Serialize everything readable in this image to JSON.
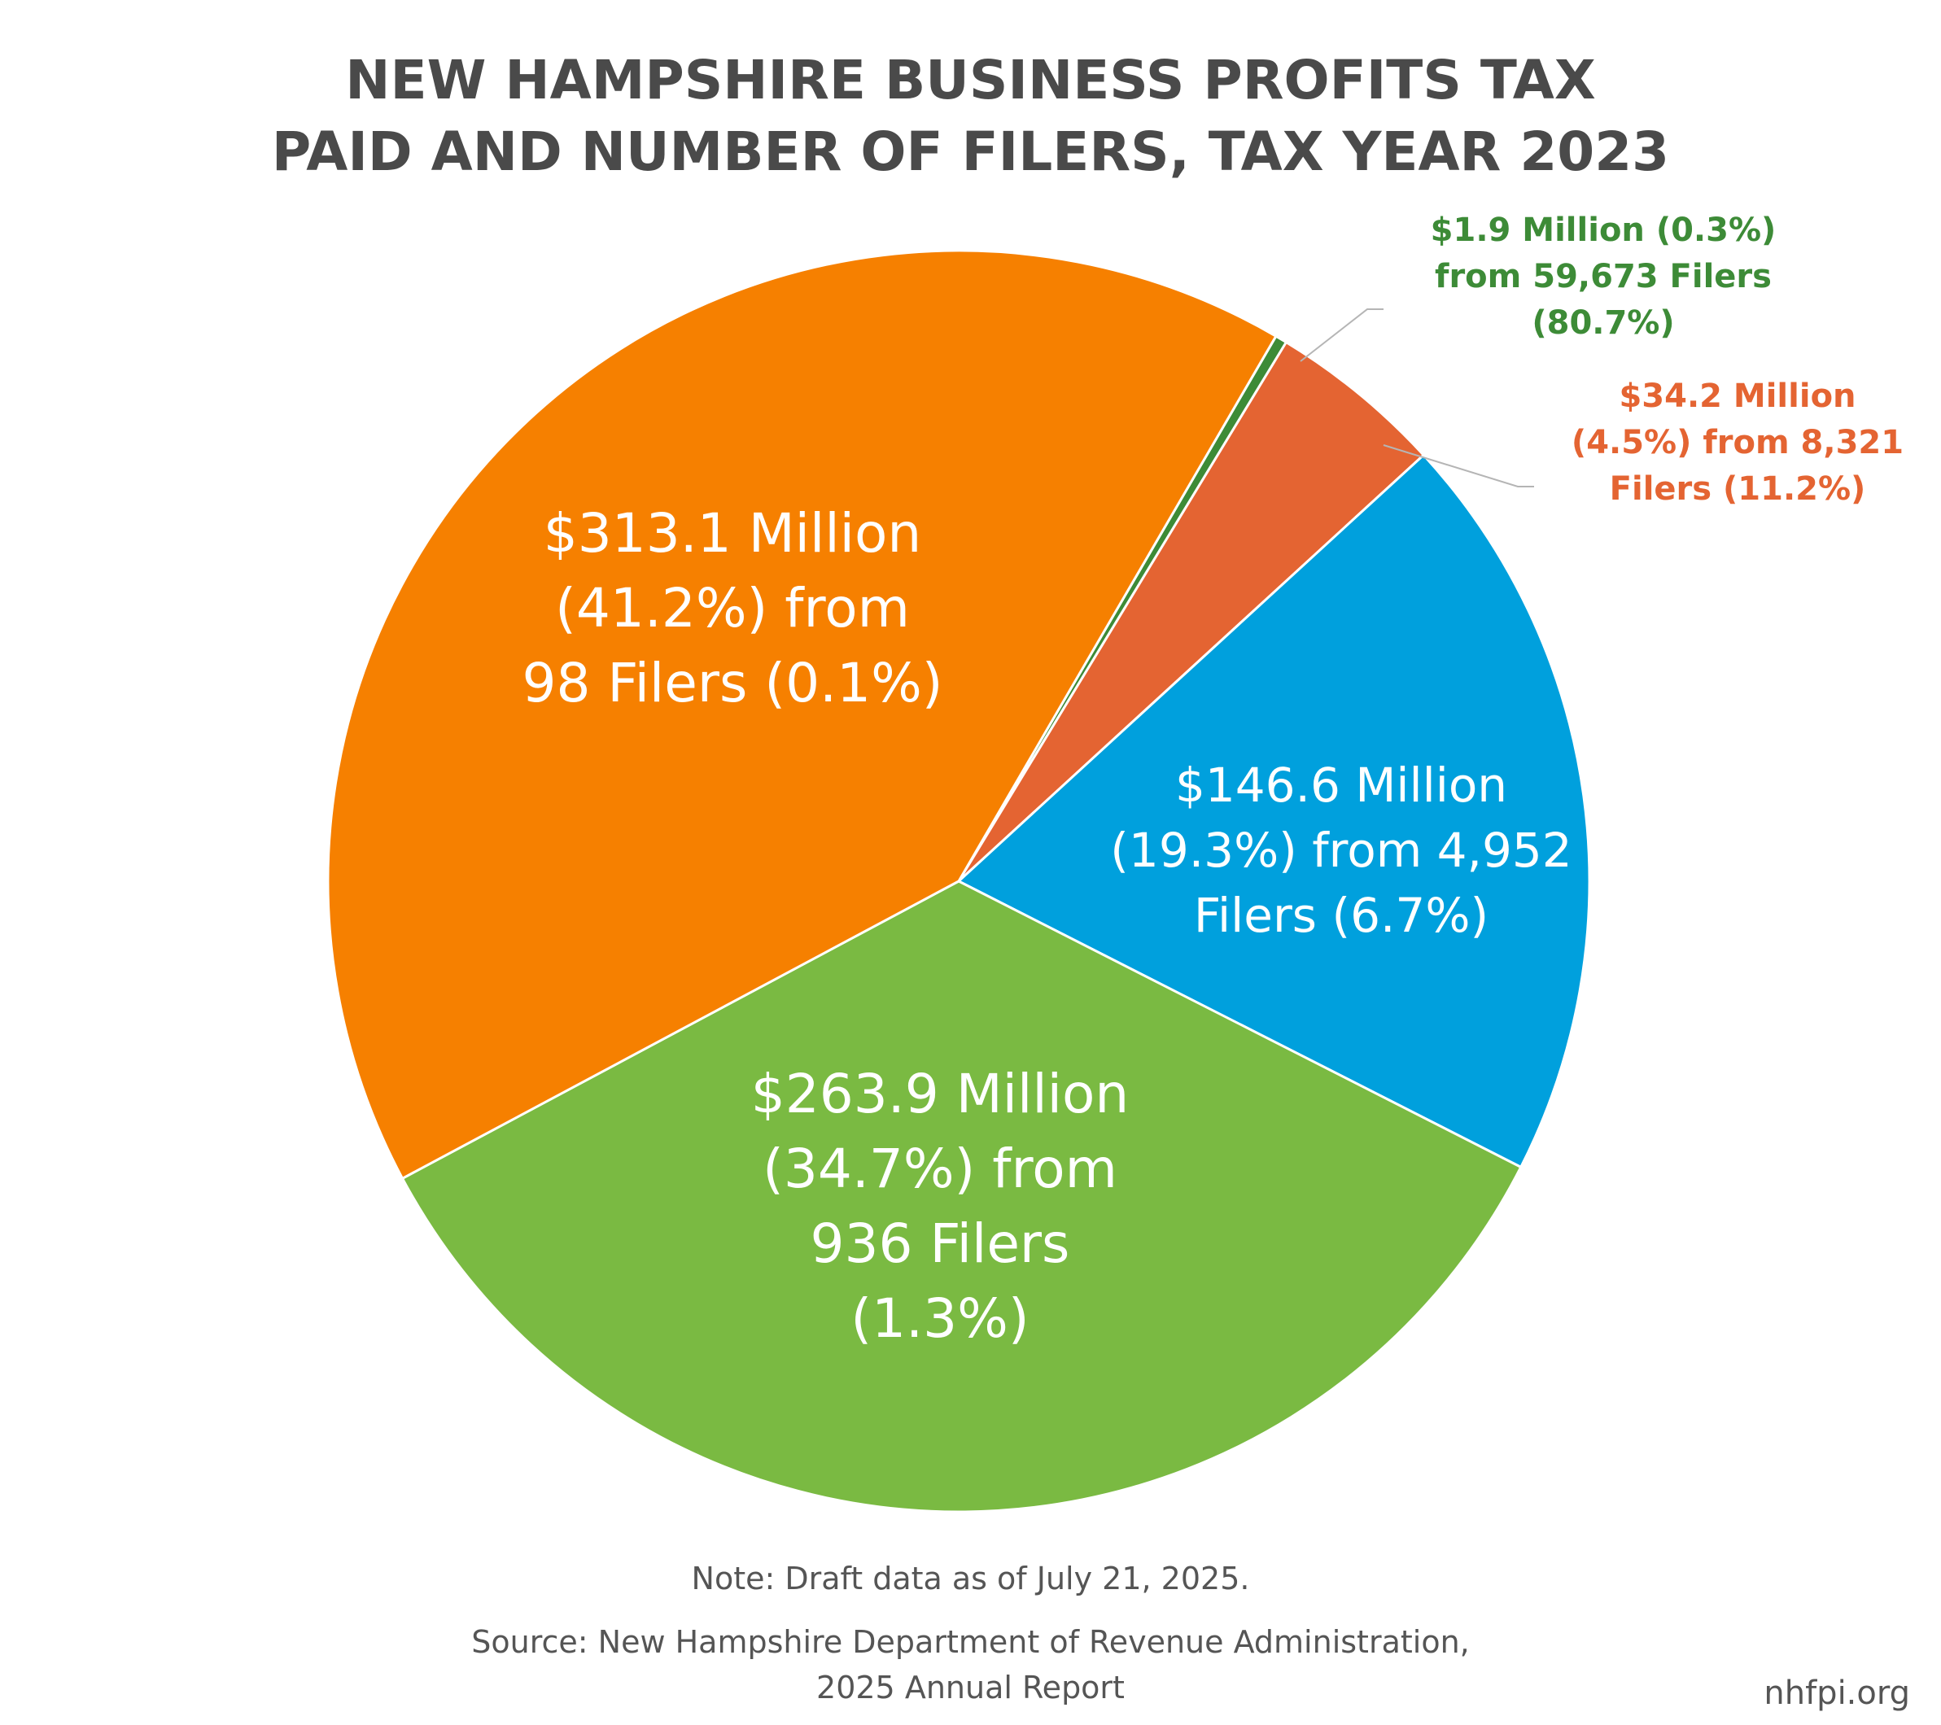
{
  "title_lines": [
    "NEW HAMPSHIRE BUSINESS PROFITS TAX",
    "PAID AND NUMBER OF FILERS, TAX YEAR 2023"
  ],
  "chart_data": {
    "type": "pie",
    "title": "NEW HAMPSHIRE BUSINESS PROFITS TAX PAID AND NUMBER OF FILERS, TAX YEAR 2023",
    "slices": [
      {
        "label_lines": [
          "$1.9 Million (0.3%)",
          "from 59,673 Filers",
          "(80.7%)"
        ],
        "amount_millions": 1.9,
        "share_percent": 0.3,
        "filers": 59673,
        "filers_percent": 80.7,
        "color": "#3d8b37",
        "label_outside": true
      },
      {
        "label_lines": [
          "$34.2 Million",
          "(4.5%) from 8,321",
          "Filers (11.2%)"
        ],
        "amount_millions": 34.2,
        "share_percent": 4.5,
        "filers": 8321,
        "filers_percent": 11.2,
        "color": "#e46432",
        "label_outside": true
      },
      {
        "label_lines": [
          "$146.6 Million",
          "(19.3%) from 4,952",
          "Filers (6.7%)"
        ],
        "amount_millions": 146.6,
        "share_percent": 19.3,
        "filers": 4952,
        "filers_percent": 6.7,
        "color": "#00a0dd",
        "label_outside": false
      },
      {
        "label_lines": [
          "$263.9 Million",
          "(34.7%) from",
          "936 Filers",
          "(1.3%)"
        ],
        "amount_millions": 263.9,
        "share_percent": 34.7,
        "filers": 936,
        "filers_percent": 1.3,
        "color": "#7aba42",
        "label_outside": false
      },
      {
        "label_lines": [
          "$313.1 Million",
          "(41.2%) from",
          "98 Filers (0.1%)"
        ],
        "amount_millions": 313.1,
        "share_percent": 41.2,
        "filers": 98,
        "filers_percent": 0.1,
        "color": "#f68000",
        "label_outside": false
      }
    ]
  },
  "note": "Note: Draft data as of July 21, 2025.",
  "source_lines": [
    "Source: New Hampshire Department of Revenue Administration,",
    "2025 Annual Report"
  ],
  "site": "nhfpi.org"
}
